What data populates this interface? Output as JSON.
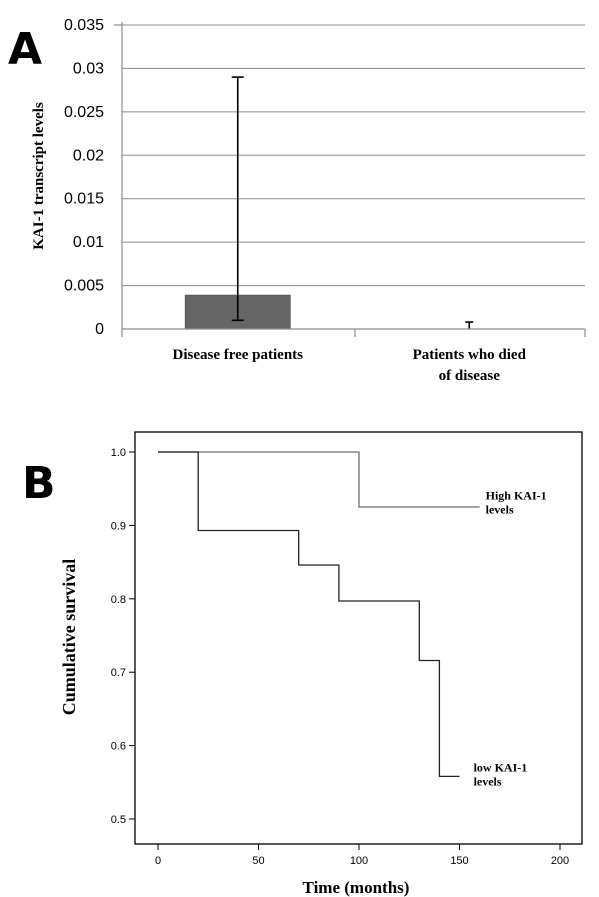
{
  "chart_data": [
    {
      "panel": "A",
      "type": "bar",
      "title": "",
      "xlabel": "",
      "ylabel": "KAI-1 transcript levels",
      "ylim": [
        0,
        0.035
      ],
      "yticks": [
        0,
        0.005,
        0.01,
        0.015,
        0.02,
        0.025,
        0.03,
        0.035
      ],
      "ytick_labels": [
        "0",
        "0.005",
        "0.01",
        "0.015",
        "0.02",
        "0.025",
        "0.03",
        "0.035"
      ],
      "grid": true,
      "bar_color": "#666666",
      "categories": [
        {
          "lines": [
            "Disease free patients"
          ]
        },
        {
          "lines": [
            "Patients who died",
            "of disease"
          ]
        }
      ],
      "values": [
        0.0039,
        0.0
      ],
      "error_low": [
        0.001,
        0.0
      ],
      "error_high": [
        0.029,
        0.0008
      ]
    },
    {
      "panel": "B",
      "type": "line",
      "subtype": "step",
      "title": "",
      "xlabel": "Time (months)",
      "ylabel": "Cumulative survival",
      "xlim": [
        0,
        200
      ],
      "ylim": [
        0.5,
        1.0
      ],
      "xticks": [
        0,
        50,
        100,
        150,
        200
      ],
      "yticks": [
        0.5,
        0.6,
        0.7,
        0.8,
        0.9,
        1.0
      ],
      "ytick_labels": [
        "0.5",
        "0.6",
        "0.7",
        "0.8",
        "0.9",
        "1.0"
      ],
      "grid": false,
      "series": [
        {
          "x": [
            0,
            100,
            100,
            160
          ],
          "y": [
            1.0,
            1.0,
            0.925,
            0.925
          ],
          "label_lines": [
            "High KAI-1",
            "levels"
          ],
          "label_at": [
            163,
            0.935
          ]
        },
        {
          "x": [
            0,
            20,
            20,
            70,
            70,
            90,
            90,
            130,
            130,
            140,
            140,
            150
          ],
          "y": [
            1.0,
            1.0,
            0.893,
            0.893,
            0.846,
            0.846,
            0.797,
            0.797,
            0.716,
            0.716,
            0.558,
            0.558
          ],
          "label_lines": [
            "low KAI-1",
            "levels"
          ],
          "label_at": [
            157,
            0.565
          ]
        }
      ]
    }
  ],
  "panel_labels": {
    "a": "A",
    "b": "B"
  }
}
